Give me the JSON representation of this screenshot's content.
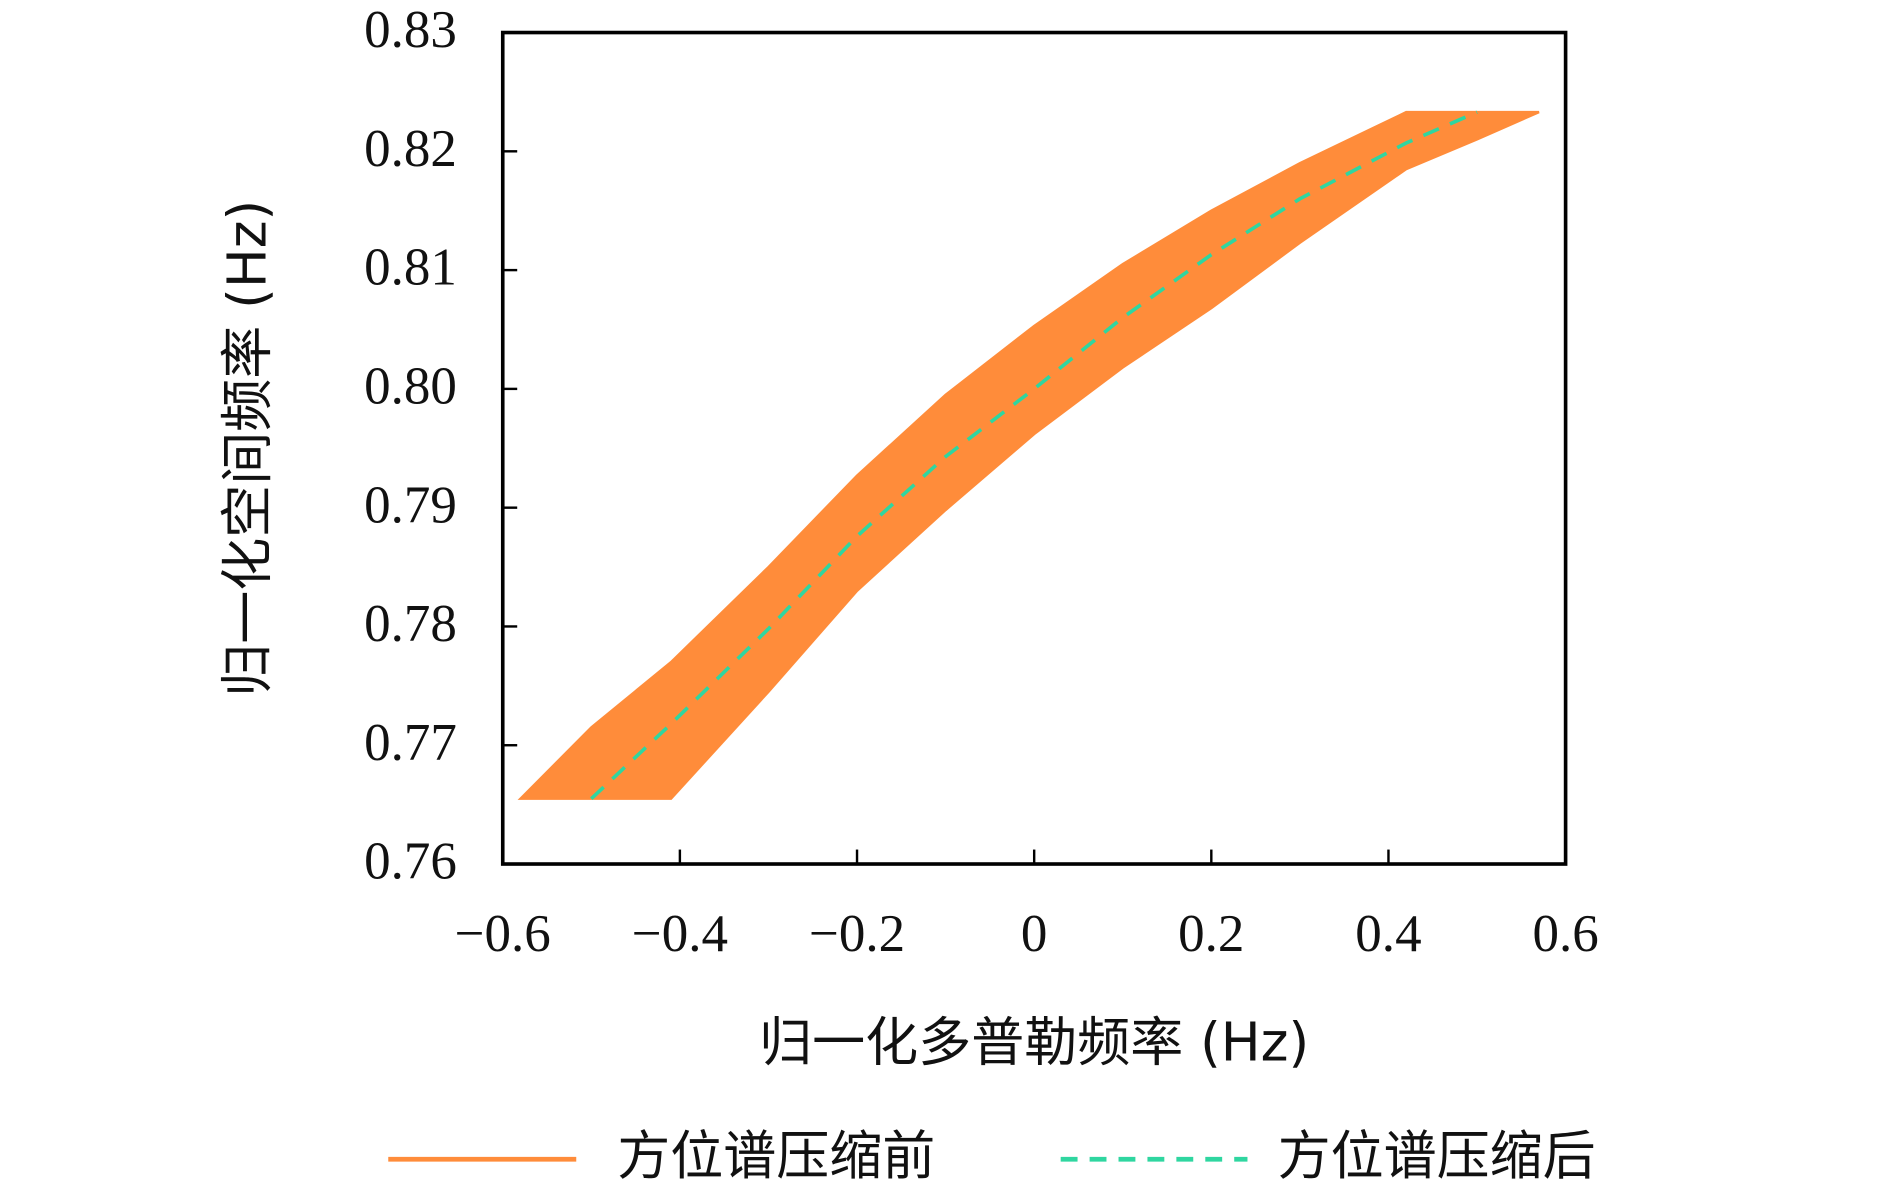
{
  "chart_data": {
    "type": "band-line",
    "xlabel": "归一化多普勒频率 (Hz)",
    "ylabel": "归一化空间频率 (Hz)",
    "x": [
      -0.58,
      -0.5,
      -0.41,
      -0.3,
      -0.2,
      -0.1,
      0,
      0.1,
      0.2,
      0.3,
      0.42,
      0.5,
      0.57
    ],
    "series": [
      {
        "name": "方位谱压缩前",
        "color": "#ff8c3a",
        "upper": [
          0.7655,
          0.7715,
          0.777,
          0.785,
          0.7927,
          0.7995,
          0.8053,
          0.8105,
          0.815,
          0.819,
          0.8233,
          0.8233,
          0.8233
        ],
        "lower": [
          0.7655,
          0.7655,
          0.7655,
          0.7745,
          0.783,
          0.7898,
          0.7962,
          0.8018,
          0.8068,
          0.8123,
          0.8185,
          0.821,
          0.8233
        ]
      },
      {
        "name": "方位谱压缩后",
        "color": "#2fd6a0",
        "values": [
          null,
          0.7655,
          0.7718,
          0.7798,
          0.7876,
          0.7943,
          0.8,
          0.806,
          0.8113,
          0.816,
          0.8207,
          0.8233,
          null
        ]
      }
    ],
    "xlim": [
      -0.6,
      0.6
    ],
    "xticks": [
      {
        "value": -0.6,
        "label": "−0.6"
      },
      {
        "value": -0.4,
        "label": "−0.4"
      },
      {
        "value": -0.2,
        "label": "−0.2"
      },
      0,
      0.2,
      0.4,
      0.6
    ],
    "ylim": [
      0.76,
      0.83
    ],
    "yticks": [
      0.76,
      0.77,
      0.78,
      0.79,
      {
        "value": 0.8,
        "label": "0.80"
      },
      0.81,
      0.82,
      0.83
    ]
  }
}
